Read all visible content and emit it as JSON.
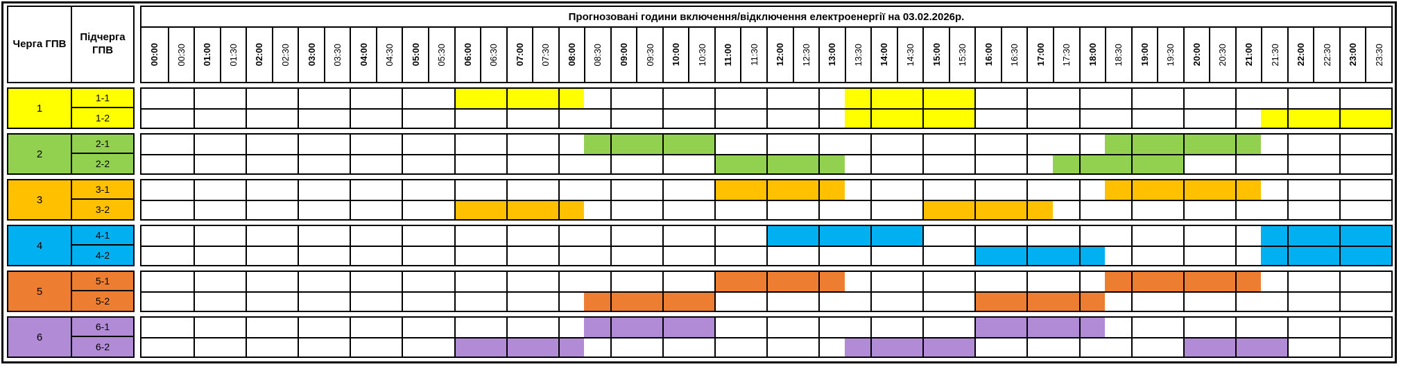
{
  "title": "Прогнозовані години включення/відключення електроенергії на 03.02.2026р.",
  "left_header": {
    "queue": "Черга ГПВ",
    "subqueue": "Підчерга ГПВ"
  },
  "times": [
    "00:00",
    "00:30",
    "01:00",
    "01:30",
    "02:00",
    "02:30",
    "03:00",
    "03:30",
    "04:00",
    "04:30",
    "05:00",
    "05:30",
    "06:00",
    "06:30",
    "07:00",
    "07:30",
    "08:00",
    "08:30",
    "09:00",
    "09:30",
    "10:00",
    "10:30",
    "11:00",
    "11:30",
    "12:00",
    "12:30",
    "13:00",
    "13:30",
    "14:00",
    "14:30",
    "15:00",
    "15:30",
    "16:00",
    "16:30",
    "17:00",
    "17:30",
    "18:00",
    "18:30",
    "19:00",
    "19:30",
    "20:00",
    "20:30",
    "21:00",
    "21:30",
    "22:00",
    "22:30",
    "23:00",
    "23:30"
  ],
  "grid": {
    "slot_hours": 0.5,
    "day_start": 0,
    "day_end": 24,
    "border_color": "#000000"
  },
  "queues": [
    {
      "id": "1",
      "color": "#FFFF00",
      "subqueues": [
        {
          "label": "1-1",
          "runs": [
            [
              6.0,
              8.5
            ],
            [
              13.5,
              16.0
            ]
          ]
        },
        {
          "label": "1-2",
          "runs": [
            [
              13.5,
              16.0
            ],
            [
              21.5,
              24.0
            ]
          ]
        }
      ]
    },
    {
      "id": "2",
      "color": "#92D050",
      "subqueues": [
        {
          "label": "2-1",
          "runs": [
            [
              8.5,
              11.0
            ],
            [
              18.5,
              21.5
            ]
          ]
        },
        {
          "label": "2-2",
          "runs": [
            [
              11.0,
              13.5
            ],
            [
              17.5,
              20.0
            ]
          ]
        }
      ]
    },
    {
      "id": "3",
      "color": "#FFC000",
      "subqueues": [
        {
          "label": "3-1",
          "runs": [
            [
              11.0,
              13.5
            ],
            [
              18.5,
              21.5
            ]
          ]
        },
        {
          "label": "3-2",
          "runs": [
            [
              6.0,
              8.5
            ],
            [
              15.0,
              17.5
            ]
          ]
        }
      ]
    },
    {
      "id": "4",
      "color": "#00B0F0",
      "subqueues": [
        {
          "label": "4-1",
          "runs": [
            [
              12.0,
              15.0
            ],
            [
              21.5,
              24.0
            ]
          ]
        },
        {
          "label": "4-2",
          "runs": [
            [
              16.0,
              18.5
            ],
            [
              21.5,
              24.0
            ]
          ]
        }
      ]
    },
    {
      "id": "5",
      "color": "#ED7D31",
      "subqueues": [
        {
          "label": "5-1",
          "runs": [
            [
              11.0,
              13.5
            ],
            [
              18.5,
              21.5
            ]
          ]
        },
        {
          "label": "5-2",
          "runs": [
            [
              8.5,
              11.0
            ],
            [
              16.0,
              18.5
            ]
          ]
        }
      ]
    },
    {
      "id": "6",
      "color": "#B18BD6",
      "subqueues": [
        {
          "label": "6-1",
          "runs": [
            [
              8.5,
              11.0
            ],
            [
              16.0,
              18.5
            ]
          ]
        },
        {
          "label": "6-2",
          "runs": [
            [
              6.0,
              8.5
            ],
            [
              13.5,
              16.0
            ],
            [
              20.0,
              22.0
            ]
          ]
        }
      ]
    }
  ]
}
